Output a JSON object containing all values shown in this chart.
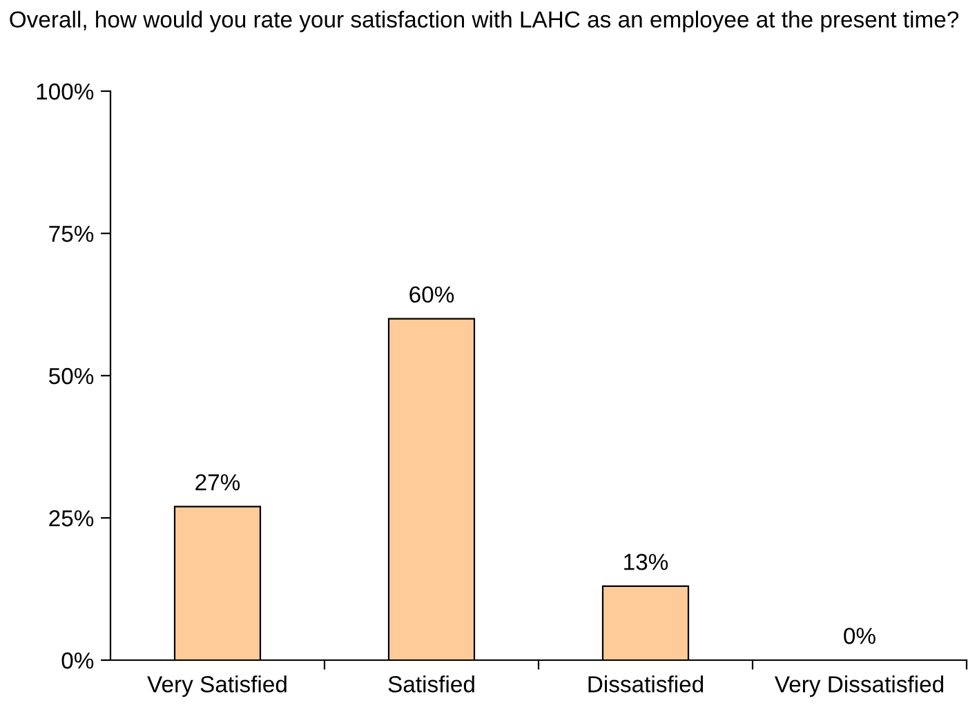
{
  "chart_data": {
    "type": "bar",
    "title": "Overall, how would you rate your satisfaction with LAHC as an employee at the present time?",
    "categories": [
      "Very Satisfied",
      "Satisfied",
      "Dissatisfied",
      "Very Dissatisfied"
    ],
    "values": [
      27,
      60,
      13,
      0
    ],
    "value_labels": [
      "27%",
      "60%",
      "13%",
      "0%"
    ],
    "color": "#ffcc99",
    "ylim": [
      0,
      100
    ],
    "yticks": [
      {
        "value": 0,
        "label": "0%"
      },
      {
        "value": 25,
        "label": "25%"
      },
      {
        "value": 50,
        "label": "50%"
      },
      {
        "value": 75,
        "label": "75%"
      },
      {
        "value": 100,
        "label": "100%"
      }
    ],
    "grid": false,
    "legend": false
  }
}
